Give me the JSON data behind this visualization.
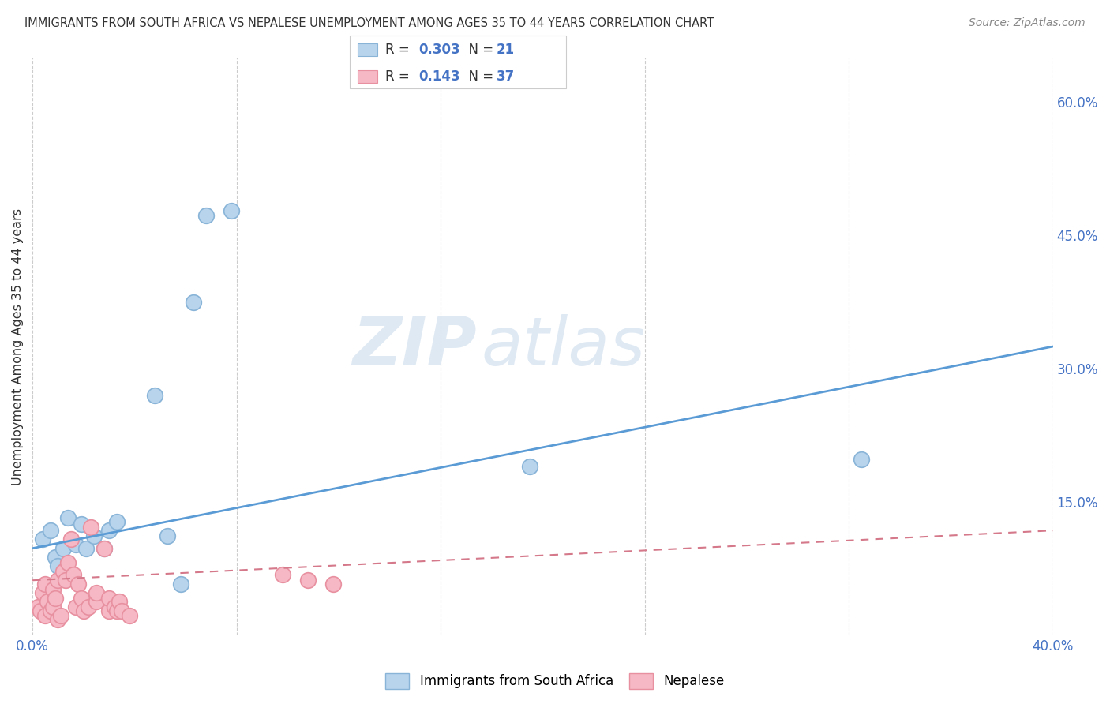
{
  "title": "IMMIGRANTS FROM SOUTH AFRICA VS NEPALESE UNEMPLOYMENT AMONG AGES 35 TO 44 YEARS CORRELATION CHART",
  "source": "Source: ZipAtlas.com",
  "ylabel": "Unemployment Among Ages 35 to 44 years",
  "ytick_labels": [
    "",
    "15.0%",
    "30.0%",
    "45.0%",
    "60.0%"
  ],
  "ytick_values": [
    0.0,
    0.15,
    0.3,
    0.45,
    0.6
  ],
  "xlim": [
    0.0,
    0.4
  ],
  "ylim": [
    0.0,
    0.65
  ],
  "watermark_zip": "ZIP",
  "watermark_atlas": "atlas",
  "legend_r1": "0.303",
  "legend_n1": "21",
  "legend_r2": "0.143",
  "legend_n2": "37",
  "blue_face": "#b8d4ec",
  "blue_edge": "#89b4d8",
  "pink_face": "#f5b8c4",
  "pink_edge": "#e890a0",
  "blue_line_color": "#5b9bd5",
  "pink_line_color": "#d4788a",
  "text_color": "#333333",
  "label_color": "#4472c4",
  "blue_scatter": [
    [
      0.004,
      0.108
    ],
    [
      0.007,
      0.118
    ],
    [
      0.009,
      0.088
    ],
    [
      0.01,
      0.078
    ],
    [
      0.012,
      0.098
    ],
    [
      0.014,
      0.132
    ],
    [
      0.017,
      0.102
    ],
    [
      0.019,
      0.125
    ],
    [
      0.021,
      0.098
    ],
    [
      0.024,
      0.112
    ],
    [
      0.028,
      0.098
    ],
    [
      0.03,
      0.118
    ],
    [
      0.033,
      0.128
    ],
    [
      0.048,
      0.27
    ],
    [
      0.053,
      0.112
    ],
    [
      0.058,
      0.058
    ],
    [
      0.063,
      0.375
    ],
    [
      0.068,
      0.472
    ],
    [
      0.078,
      0.478
    ],
    [
      0.195,
      0.19
    ],
    [
      0.325,
      0.198
    ]
  ],
  "pink_scatter": [
    [
      0.002,
      0.032
    ],
    [
      0.003,
      0.028
    ],
    [
      0.004,
      0.048
    ],
    [
      0.005,
      0.022
    ],
    [
      0.005,
      0.058
    ],
    [
      0.006,
      0.038
    ],
    [
      0.007,
      0.028
    ],
    [
      0.008,
      0.032
    ],
    [
      0.008,
      0.052
    ],
    [
      0.009,
      0.042
    ],
    [
      0.01,
      0.018
    ],
    [
      0.01,
      0.062
    ],
    [
      0.011,
      0.022
    ],
    [
      0.012,
      0.072
    ],
    [
      0.013,
      0.062
    ],
    [
      0.014,
      0.082
    ],
    [
      0.015,
      0.108
    ],
    [
      0.016,
      0.068
    ],
    [
      0.017,
      0.032
    ],
    [
      0.018,
      0.058
    ],
    [
      0.019,
      0.042
    ],
    [
      0.02,
      0.028
    ],
    [
      0.022,
      0.032
    ],
    [
      0.023,
      0.122
    ],
    [
      0.025,
      0.038
    ],
    [
      0.025,
      0.048
    ],
    [
      0.028,
      0.098
    ],
    [
      0.03,
      0.028
    ],
    [
      0.03,
      0.042
    ],
    [
      0.032,
      0.032
    ],
    [
      0.033,
      0.028
    ],
    [
      0.034,
      0.038
    ],
    [
      0.035,
      0.028
    ],
    [
      0.038,
      0.022
    ],
    [
      0.098,
      0.068
    ],
    [
      0.108,
      0.062
    ],
    [
      0.118,
      0.058
    ]
  ],
  "blue_trendline": [
    [
      0.0,
      0.098
    ],
    [
      0.4,
      0.325
    ]
  ],
  "pink_trendline": [
    [
      0.0,
      0.062
    ],
    [
      0.4,
      0.118
    ]
  ]
}
